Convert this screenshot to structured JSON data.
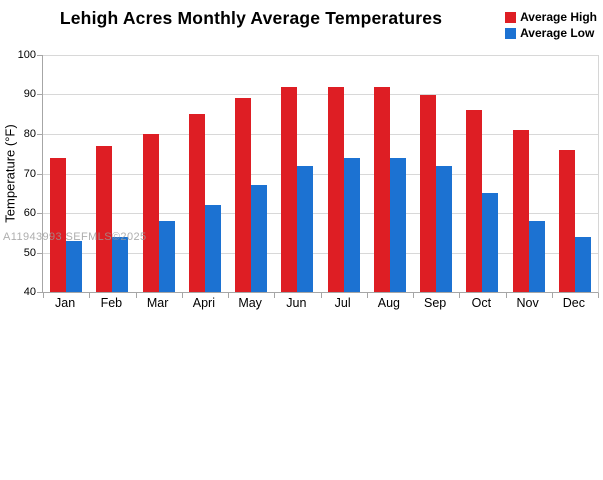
{
  "title": "Lehigh Acres Monthly Average Temperatures",
  "watermark": "A11943993 SEFMLS©2025",
  "colors": {
    "high": "#DE1E24",
    "low": "#1C72D2",
    "grid": "#d8d8d8",
    "axis": "#a6a6a6"
  },
  "chart_data": {
    "type": "bar",
    "title": "Lehigh Acres Monthly Average Temperatures",
    "xlabel": "",
    "ylabel": "Temperature (°F)",
    "categories": [
      "Jan",
      "Feb",
      "Mar",
      "Apri",
      "May",
      "Jun",
      "Jul",
      "Aug",
      "Sep",
      "Oct",
      "Nov",
      "Dec"
    ],
    "series": [
      {
        "name": "Average High",
        "color": "#DE1E24",
        "values": [
          74,
          77,
          80,
          85,
          89,
          92,
          92,
          92,
          90,
          86,
          81,
          76
        ]
      },
      {
        "name": "Average Low",
        "color": "#1C72D2",
        "values": [
          53,
          54,
          58,
          62,
          67,
          72,
          74,
          74,
          72,
          65,
          58,
          54
        ]
      }
    ],
    "ylim": [
      40,
      100
    ],
    "ytick_step": 10,
    "grid": true,
    "legend_position": "top-right"
  }
}
